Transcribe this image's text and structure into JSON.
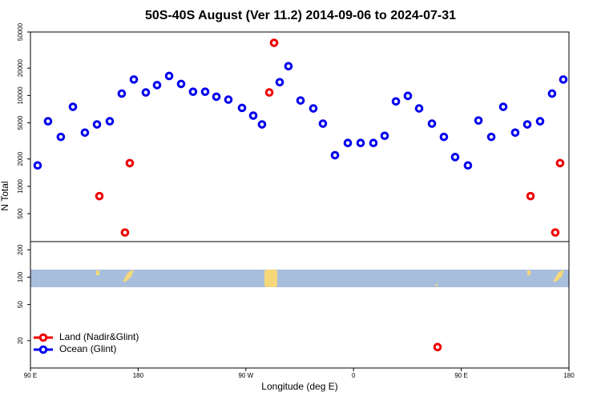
{
  "chart_data": {
    "type": "scatter",
    "title": "50S-40S August (Ver 11.2)   2014-09-06 to 2024-07-31",
    "xlabel": "Longitude (deg E)",
    "ylabel": "N Total",
    "ylog": true,
    "xlim": [
      90,
      540
    ],
    "ylim": [
      10,
      50000
    ],
    "xticks": [
      {
        "value": 90,
        "label": "90 E"
      },
      {
        "value": 180,
        "label": "180"
      },
      {
        "value": 270,
        "label": "90 W"
      },
      {
        "value": 360,
        "label": "0"
      },
      {
        "value": 450,
        "label": "90 E"
      },
      {
        "value": 540,
        "label": "180"
      }
    ],
    "yticks": [
      20,
      50,
      100,
      200,
      500,
      1000,
      2000,
      5000,
      10000,
      20000,
      50000
    ],
    "legend": "lower left",
    "series": [
      {
        "name": "Land (Nadir&Glint)",
        "color": "#ee0000",
        "x": [
          147.6,
          169,
          173,
          289.6,
          293.6,
          430.2,
          507.9,
          528.6,
          532.6
        ],
        "values": [
          780,
          310,
          1800,
          10800,
          38000,
          17,
          780,
          310,
          1800
        ]
      },
      {
        "name": "Ocean (Glint)",
        "color": "#0000ee",
        "x": [
          96,
          104.7,
          115.4,
          125.5,
          135.5,
          145.6,
          156.3,
          166.3,
          176.4,
          186.4,
          195.8,
          205.9,
          215.9,
          225.9,
          236,
          245.4,
          255.4,
          266.8,
          276.2,
          283.5,
          298.3,
          305.6,
          315.7,
          326.4,
          334.4,
          344.5,
          355.2,
          365.9,
          376.6,
          386,
          395.4,
          405.4,
          414.8,
          425.5,
          435.5,
          444.9,
          455.6,
          464.4,
          475.1,
          485.1,
          495.1,
          505.2,
          515.9,
          525.9,
          535.3
        ],
        "values": [
          1700,
          5200,
          3500,
          7500,
          3900,
          4800,
          5200,
          10500,
          15000,
          10800,
          13000,
          16400,
          13400,
          11000,
          11000,
          9700,
          9000,
          7300,
          6000,
          4800,
          14000,
          21000,
          8800,
          7200,
          4900,
          2200,
          3000,
          3000,
          3000,
          3600,
          8600,
          9900,
          7200,
          4900,
          3500,
          2100,
          1700,
          5300,
          3500,
          7500,
          3900,
          4800,
          5200,
          10500,
          15000
        ]
      }
    ]
  }
}
